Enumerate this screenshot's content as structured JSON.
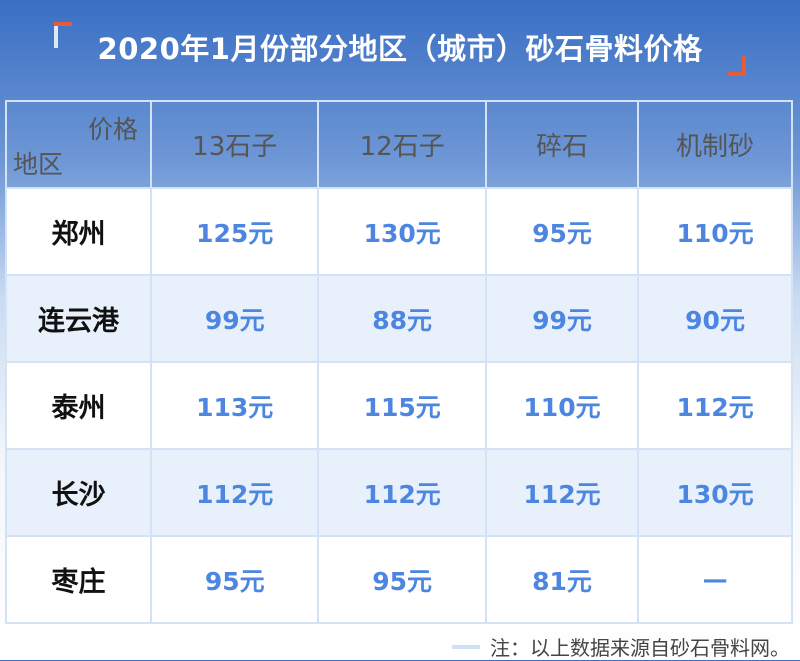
{
  "title": "2020年1月份部分地区（城市）砂石骨料价格",
  "corner": {
    "price_label": "价格",
    "region_label": "地区"
  },
  "columns": [
    "13石子",
    "12石子",
    "碎石",
    "机制砂"
  ],
  "rows": [
    {
      "city": "郑州",
      "values": [
        "125元",
        "130元",
        "95元",
        "110元"
      ]
    },
    {
      "city": "连云港",
      "values": [
        "99元",
        "88元",
        "99元",
        "90元"
      ]
    },
    {
      "city": "泰州",
      "values": [
        "113元",
        "115元",
        "110元",
        "112元"
      ]
    },
    {
      "city": "长沙",
      "values": [
        "112元",
        "112元",
        "112元",
        "130元"
      ]
    },
    {
      "city": "枣庄",
      "values": [
        "95元",
        "95元",
        "81元",
        "—"
      ]
    }
  ],
  "note": "注：以上数据来源自砂石骨料网。",
  "colors": {
    "value": "#4d86e0",
    "accent": "#e85b3a",
    "header_bg": "#3a6fc4"
  }
}
